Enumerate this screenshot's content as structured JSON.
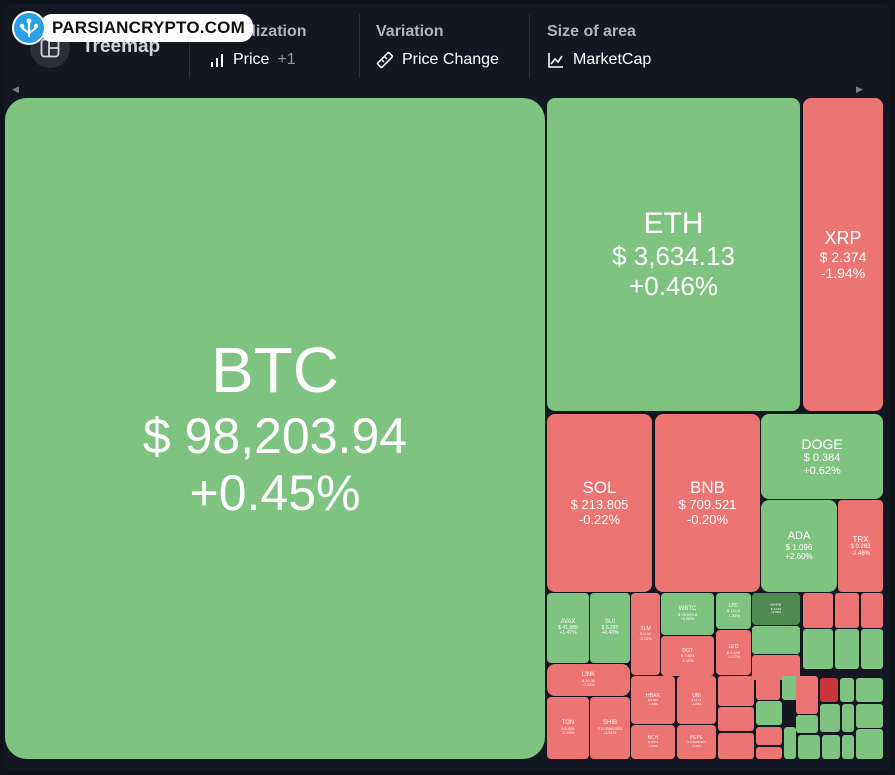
{
  "watermark": {
    "text": "PARSIANCRYPTO.COM"
  },
  "toolbar": {
    "treemap_label": "Treemap",
    "visualization": {
      "title": "Visualization",
      "value": "Price",
      "extra": "+1"
    },
    "variation": {
      "title": "Variation",
      "value": "Price Change"
    },
    "size": {
      "title": "Size of area",
      "value": "MarketCap"
    }
  },
  "colors": {
    "up": "#7fc381",
    "down": "#ec7472",
    "background": "#131722"
  },
  "tiles": [
    {
      "symbol": "BTC",
      "price": "$ 98,203.94",
      "change": "+0.45%"
    },
    {
      "symbol": "ETH",
      "price": "$ 3,634.13",
      "change": "+0.46%"
    },
    {
      "symbol": "XRP",
      "price": "$ 2.374",
      "change": "-1.94%"
    },
    {
      "symbol": "SOL",
      "price": "$ 213.805",
      "change": "-0.22%"
    },
    {
      "symbol": "BNB",
      "price": "$ 709.521",
      "change": "-0.20%"
    },
    {
      "symbol": "DOGE",
      "price": "$ 0.384",
      "change": "+0.62%"
    },
    {
      "symbol": "ADA",
      "price": "$ 1.096",
      "change": "+2.60%"
    },
    {
      "symbol": "TRX",
      "price": "$ 0.263",
      "change": "-2.46%"
    },
    {
      "symbol": "AVAX",
      "price": "$ 41.895",
      "change": "+1.47%"
    },
    {
      "symbol": "SUI",
      "price": "$ 5.297",
      "change": "+0.43%"
    },
    {
      "symbol": "XLM",
      "price": "$ 0.44",
      "change": "-3.19%"
    },
    {
      "symbol": "WBTC",
      "price": "$ 98,003.8",
      "change": "+0.60%"
    },
    {
      "symbol": "LTC",
      "price": "$ 115.6",
      "change": "-1.33%"
    },
    {
      "symbol": "HYPE",
      "price": "$ 24.53",
      "change": "+6.58%"
    },
    {
      "symbol": "DOT",
      "price": "$ 7.829",
      "change": "-1.10%"
    },
    {
      "symbol": "LEO",
      "price": "$ 9.616",
      "change": "-0.17%"
    },
    {
      "symbol": "LINK",
      "price": "$ 22.34",
      "change": "-0.14%"
    },
    {
      "symbol": "TON",
      "price": "$ 5.658",
      "change": "-0.48%"
    },
    {
      "symbol": "SHIB",
      "price": "$ 0.00002303",
      "change": "-1.51%"
    },
    {
      "symbol": "HBAR",
      "price": "$ 0.303",
      "change": "-1.63%"
    },
    {
      "symbol": "UNI",
      "price": "$ 14.21",
      "change": "-1.60%"
    },
    {
      "symbol": "BCH",
      "price": "$ 469.9",
      "change": "-1.23%"
    },
    {
      "symbol": "PEPE",
      "price": "$ 0.00001854",
      "change": "-1.36%"
    }
  ]
}
